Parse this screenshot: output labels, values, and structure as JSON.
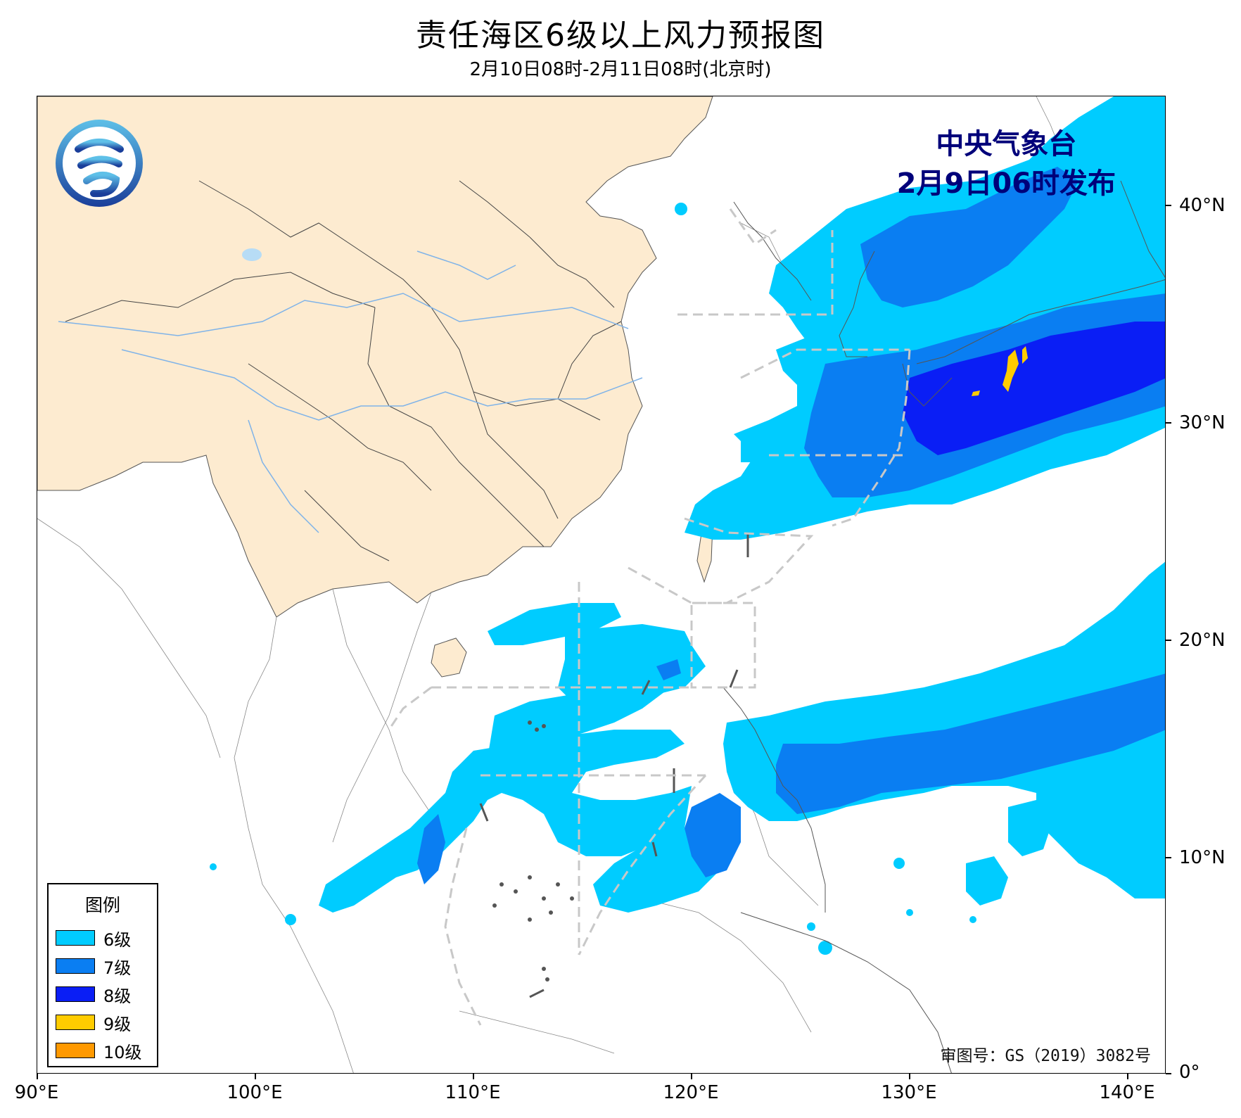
{
  "title": "责任海区6级以上风力预报图",
  "subtitle": "2月10日08时-2月11日08时(北京时)",
  "issuer": {
    "name": "中央气象台",
    "time": "2月9日06时发布"
  },
  "approval_number": "审图号：GS（2019）3082号",
  "legend": {
    "title": "图例",
    "items": [
      {
        "label": "6级",
        "color": "#00ccff"
      },
      {
        "label": "7级",
        "color": "#0a7ef2"
      },
      {
        "label": "8级",
        "color": "#0a1ef5"
      },
      {
        "label": "9级",
        "color": "#ffcc00"
      },
      {
        "label": "10级",
        "color": "#ff9900"
      }
    ]
  },
  "axes": {
    "lon_labels": [
      "90°E",
      "100°E",
      "110°E",
      "120°E",
      "130°E",
      "140°E"
    ],
    "lat_labels": [
      "40°N",
      "30°N",
      "20°N",
      "10°N",
      "0°"
    ]
  },
  "colors": {
    "china_land": "#fdebd0",
    "rivers": "#7fb3e8",
    "responsibility_zone_lines": "#c8c8c8",
    "logo_gradient_top": "#5ec0e8",
    "logo_gradient_bottom": "#1a3e9a"
  },
  "icons": {
    "logo": "cma-logo-icon"
  }
}
